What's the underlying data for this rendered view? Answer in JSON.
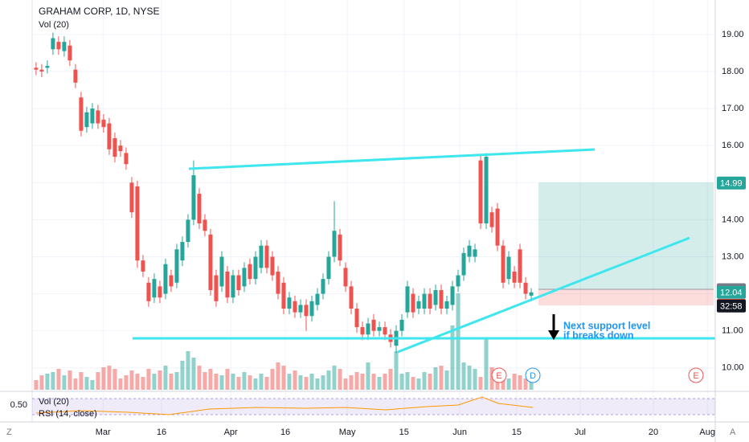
{
  "header": {
    "symbol": "GRAHAM CORP, 1D, NYSE",
    "indicator": "Vol (20)"
  },
  "chart_data": {
    "type": "candlestick",
    "up_color": "#26a69a",
    "down_color": "#ef5350",
    "open": [
      18.1,
      18.05,
      18.1,
      18.6,
      18.8,
      18.55,
      18.7,
      18.05,
      17.3,
      16.5,
      16.6,
      16.95,
      16.7,
      16.6,
      16.2,
      16.0,
      15.8,
      15.0,
      14.9,
      12.9,
      12.3,
      11.9,
      12.2,
      12.0,
      12.5,
      12.3,
      12.9,
      13.4,
      14.0,
      14.7,
      14.0,
      13.6,
      12.5,
      12.2,
      12.6,
      11.9,
      12.5,
      12.2,
      12.8,
      12.4,
      12.7,
      13.3,
      13.0,
      12.6,
      12.3,
      11.6,
      11.8,
      11.5,
      11.7,
      11.4,
      11.7,
      12.0,
      12.4,
      13.0,
      13.6,
      12.7,
      12.2,
      11.6,
      11.1,
      10.9,
      11.3,
      11.0,
      11.1,
      10.9,
      10.6,
      11.0,
      11.5,
      12.0,
      11.6,
      11.6,
      12.0,
      11.7,
      12.1,
      11.6,
      11.7,
      12.2,
      12.5,
      13.0,
      13.0,
      15.6,
      13.9,
      14.2,
      14.3,
      13.3,
      12.4,
      12.6,
      13.2,
      12.3,
      11.95
    ],
    "high": [
      18.25,
      18.2,
      18.3,
      19.05,
      18.95,
      18.95,
      18.85,
      18.2,
      17.45,
      17.05,
      17.15,
      17.1,
      16.85,
      16.75,
      16.35,
      16.15,
      15.95,
      15.15,
      15.05,
      13.05,
      12.45,
      12.55,
      12.35,
      12.95,
      12.65,
      13.35,
      13.55,
      14.15,
      15.6,
      14.85,
      14.15,
      13.75,
      12.65,
      13.15,
      12.75,
      12.65,
      12.65,
      12.85,
      12.95,
      13.15,
      13.45,
      13.45,
      13.15,
      12.75,
      12.45,
      12.05,
      11.95,
      11.85,
      11.85,
      11.95,
      12.15,
      12.55,
      13.15,
      14.5,
      13.75,
      12.85,
      12.35,
      11.75,
      11.25,
      11.35,
      11.45,
      11.25,
      11.25,
      11.05,
      11.15,
      11.45,
      12.35,
      12.15,
      11.95,
      12.15,
      12.15,
      12.25,
      12.25,
      11.95,
      12.35,
      12.65,
      13.25,
      13.45,
      13.35,
      15.75,
      15.8,
      14.35,
      14.45,
      13.45,
      13.15,
      12.75,
      13.35,
      12.45,
      12.15
    ],
    "low": [
      17.9,
      17.85,
      17.95,
      18.45,
      18.45,
      18.4,
      18.15,
      17.55,
      16.25,
      16.35,
      16.45,
      16.45,
      16.35,
      15.75,
      15.55,
      15.7,
      15.35,
      14.05,
      12.7,
      12.45,
      11.65,
      11.75,
      11.75,
      11.85,
      12.05,
      12.15,
      12.75,
      13.25,
      13.85,
      13.75,
      13.55,
      11.95,
      11.65,
      12.05,
      11.75,
      11.75,
      11.95,
      12.05,
      12.25,
      12.25,
      12.55,
      12.55,
      12.35,
      11.85,
      11.45,
      11.45,
      11.35,
      11.35,
      11.0,
      11.25,
      11.55,
      11.85,
      12.25,
      12.85,
      12.75,
      12.05,
      11.45,
      10.95,
      10.75,
      10.75,
      10.85,
      10.85,
      10.75,
      10.55,
      10.4,
      10.85,
      11.35,
      11.35,
      11.45,
      11.45,
      11.45,
      11.55,
      11.45,
      11.45,
      11.55,
      12.05,
      12.35,
      12.85,
      12.85,
      13.75,
      13.75,
      13.65,
      13.15,
      12.15,
      12.25,
      12.15,
      12.15,
      11.85,
      11.8
    ],
    "close": [
      18.05,
      18.0,
      18.15,
      18.9,
      18.6,
      18.8,
      18.3,
      17.7,
      16.4,
      16.9,
      17.0,
      16.6,
      16.5,
      15.9,
      15.7,
      15.85,
      15.5,
      14.2,
      12.9,
      12.6,
      11.8,
      12.4,
      11.9,
      12.8,
      12.2,
      13.2,
      13.4,
      14.0,
      15.2,
      13.9,
      13.7,
      12.1,
      11.8,
      13.0,
      11.9,
      12.5,
      12.1,
      12.7,
      12.4,
      13.0,
      13.3,
      12.7,
      12.5,
      12.0,
      11.6,
      11.9,
      11.5,
      11.7,
      11.4,
      11.8,
      12.0,
      12.4,
      13.0,
      13.7,
      12.9,
      12.2,
      11.6,
      11.1,
      10.9,
      11.2,
      11.0,
      11.1,
      10.9,
      10.7,
      11.0,
      11.3,
      12.2,
      11.5,
      11.8,
      12.0,
      11.6,
      12.1,
      11.6,
      11.8,
      12.2,
      12.5,
      13.1,
      13.3,
      13.2,
      13.9,
      15.7,
      13.8,
      13.3,
      12.3,
      13.0,
      12.3,
      12.3,
      12.0,
      12.04
    ],
    "volume": [
      12,
      18,
      20,
      22,
      26,
      18,
      24,
      14,
      22,
      16,
      12,
      22,
      28,
      30,
      26,
      14,
      18,
      24,
      20,
      16,
      26,
      20,
      24,
      30,
      20,
      22,
      36,
      48,
      40,
      30,
      22,
      26,
      20,
      18,
      26,
      20,
      16,
      22,
      18,
      14,
      20,
      16,
      26,
      34,
      30,
      20,
      24,
      18,
      16,
      20,
      14,
      18,
      24,
      30,
      26,
      14,
      18,
      22,
      20,
      34,
      20,
      16,
      20,
      26,
      48,
      20,
      22,
      16,
      14,
      22,
      20,
      28,
      30,
      24,
      80,
      120,
      34,
      30,
      26,
      16,
      65,
      28,
      22,
      16,
      14,
      20,
      18,
      14,
      10
    ],
    "xlim": [
      -0.7,
      120.7
    ],
    "xticks": [
      {
        "value": 11.9,
        "label": "Mar"
      },
      {
        "value": 22.3,
        "label": "16"
      },
      {
        "value": 34.6,
        "label": "Apr"
      },
      {
        "value": 44.3,
        "label": "16"
      },
      {
        "value": 55.3,
        "label": "May"
      },
      {
        "value": 65.4,
        "label": "15"
      },
      {
        "value": 75.3,
        "label": "Jun"
      },
      {
        "value": 85.4,
        "label": "15"
      },
      {
        "value": 96.7,
        "label": "Jul"
      },
      {
        "value": 109.7,
        "label": "20"
      },
      {
        "value": 119.3,
        "label": "Aug"
      }
    ],
    "ylim": [
      9.41,
      19.93
    ],
    "yticks": [
      {
        "value": 19,
        "label": "19.00"
      },
      {
        "value": 18,
        "label": "18.00"
      },
      {
        "value": 17,
        "label": "17.00"
      },
      {
        "value": 16,
        "label": "16.00"
      },
      {
        "value": 15,
        "label": "15.00"
      },
      {
        "value": 14,
        "label": "14.00"
      },
      {
        "value": 13,
        "label": "13.00"
      },
      {
        "value": 12,
        "label": "12.00"
      },
      {
        "value": 11,
        "label": "11.00"
      },
      {
        "value": 10,
        "label": "10.00"
      }
    ],
    "grid": true,
    "price_markers": [
      {
        "value": 14.99,
        "color": "#26a69a"
      },
      {
        "value": 12.11,
        "color": "#787b86"
      },
      {
        "value": 12.04,
        "color": "#26a69a"
      },
      {
        "value": 11.69,
        "color": "#ef5350"
      }
    ],
    "countdown": "32:58",
    "annotation": [
      "Next support level",
      "if breaks down"
    ],
    "events": [
      "E",
      "D",
      "E"
    ]
  },
  "lower_pane": {
    "tick": {
      "value": 0.5,
      "label": "0.50"
    },
    "indicators": [
      "Vol (20)",
      "RSI (14, close)"
    ]
  },
  "toolbar": {
    "left": "Z",
    "right": "A"
  }
}
